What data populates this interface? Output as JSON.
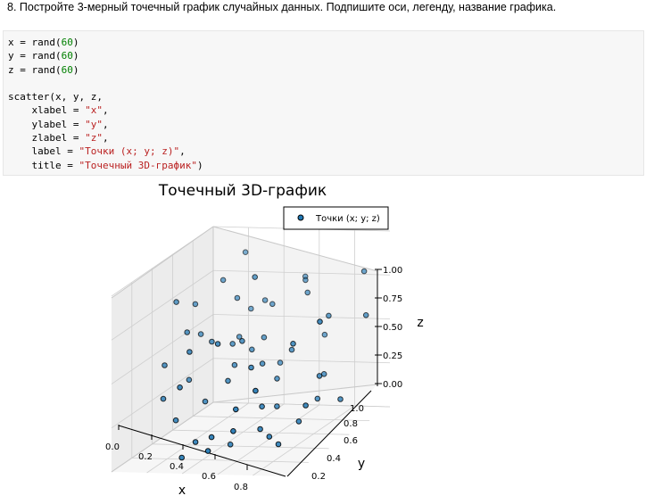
{
  "task": {
    "text": "8. Постройте 3-мерный точечный график случайных данных. Подпишите оси, легенду, название графика."
  },
  "code": {
    "lines": [
      [
        {
          "t": "x = rand("
        },
        {
          "t": "60",
          "c": "num"
        },
        {
          "t": ")"
        }
      ],
      [
        {
          "t": "y = rand("
        },
        {
          "t": "60",
          "c": "num"
        },
        {
          "t": ")"
        }
      ],
      [
        {
          "t": "z = rand("
        },
        {
          "t": "60",
          "c": "num"
        },
        {
          "t": ")"
        }
      ],
      [],
      [
        {
          "t": "scatter(x, y, z,"
        }
      ],
      [
        {
          "t": "    xlabel = "
        },
        {
          "t": "\"x\"",
          "c": "str"
        },
        {
          "t": ","
        }
      ],
      [
        {
          "t": "    ylabel = "
        },
        {
          "t": "\"y\"",
          "c": "str"
        },
        {
          "t": ","
        }
      ],
      [
        {
          "t": "    zlabel = "
        },
        {
          "t": "\"z\"",
          "c": "str"
        },
        {
          "t": ","
        }
      ],
      [
        {
          "t": "    label = "
        },
        {
          "t": "\"Точки (x; y; z)\"",
          "c": "str"
        },
        {
          "t": ","
        }
      ],
      [
        {
          "t": "    title = "
        },
        {
          "t": "\"Точечный 3D-график\"",
          "c": "str"
        },
        {
          "t": ")"
        }
      ]
    ]
  },
  "colors": {
    "marker_fill": "#1f77b4",
    "marker_edge": "#000000",
    "pane": "#f2f2f2",
    "grid": "#d0d0d0"
  },
  "chart_data": {
    "type": "scatter",
    "title": "Точечный 3D-график",
    "xlabel": "x",
    "ylabel": "y",
    "zlabel": "z",
    "legend": {
      "labels": [
        "Точки (x; y; z)"
      ],
      "placement": "top-right"
    },
    "grid": true,
    "xticks": [
      "0.0",
      "0.2",
      "0.4",
      "0.6",
      "0.8"
    ],
    "yticks": [
      "0.2",
      "0.4",
      "0.6",
      "0.8",
      "1.0"
    ],
    "zticks": [
      "0.00",
      "0.25",
      "0.50",
      "0.75",
      "1.00"
    ],
    "xlim": [
      0,
      1
    ],
    "ylim": [
      0,
      1
    ],
    "zlim": [
      0,
      1
    ],
    "series": [
      {
        "name": "Точки (x; y; z)",
        "x": [
          0.05,
          0.1,
          0.07,
          0.12,
          0.16,
          0.2,
          0.24,
          0.3,
          0.32,
          0.38,
          0.28,
          0.4,
          0.45,
          0.55,
          0.62,
          0.7,
          0.78,
          0.9,
          0.95,
          0.83,
          0.65,
          0.5,
          0.36,
          0.22,
          0.18,
          0.34,
          0.42,
          0.52,
          0.58,
          0.66,
          0.74,
          0.88,
          0.72,
          0.6,
          0.48,
          0.4,
          0.3,
          0.26,
          0.46,
          0.54,
          0.64,
          0.8,
          0.86,
          0.92,
          0.98,
          0.44,
          0.38,
          0.56,
          0.68,
          0.76,
          0.82,
          0.28,
          0.24,
          0.14,
          0.34,
          0.5,
          0.62,
          0.7,
          0.42,
          0.58
        ],
        "y": [
          0.55,
          0.65,
          0.4,
          0.3,
          0.6,
          0.75,
          0.9,
          0.85,
          0.7,
          0.55,
          0.5,
          0.45,
          0.8,
          0.95,
          0.85,
          0.88,
          0.78,
          0.92,
          0.6,
          0.4,
          0.35,
          0.3,
          0.2,
          0.25,
          0.45,
          0.6,
          0.65,
          0.58,
          0.62,
          0.48,
          0.5,
          0.38,
          0.3,
          0.18,
          0.15,
          0.35,
          0.4,
          0.22,
          0.7,
          0.72,
          0.66,
          0.7,
          0.55,
          0.45,
          0.8,
          0.52,
          0.85,
          0.4,
          0.28,
          0.32,
          0.6,
          0.75,
          0.35,
          0.5,
          0.1,
          0.08,
          0.12,
          0.2,
          0.68,
          0.9
        ],
        "z": [
          0.75,
          0.7,
          0.45,
          0.3,
          0.55,
          0.8,
          0.9,
          0.6,
          0.5,
          0.4,
          0.55,
          0.35,
          0.65,
          0.75,
          0.7,
          0.45,
          0.6,
          0.8,
          0.2,
          0.15,
          0.25,
          0.05,
          0.1,
          0.2,
          0.35,
          0.5,
          0.45,
          0.4,
          0.3,
          0.2,
          0.55,
          0.25,
          0.1,
          0.3,
          0.15,
          0.6,
          0.25,
          0.4,
          0.5,
          0.35,
          0.45,
          0.3,
          0.35,
          0.7,
          0.6,
          0.55,
          0.65,
          0.45,
          0.15,
          0.05,
          0.2,
          0.7,
          0.55,
          0.6,
          0.05,
          0.1,
          0.2,
          0.4,
          0.85,
          0.75
        ]
      }
    ]
  }
}
